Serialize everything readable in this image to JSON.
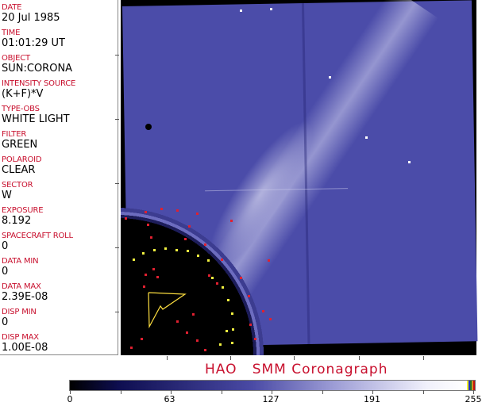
{
  "header_fields": [
    {
      "label": "DATE",
      "value": "20 Jul 1985"
    },
    {
      "label": "TIME",
      "value": "01:01:29 UT"
    },
    {
      "label": "OBJECT",
      "value": "SUN:CORONA"
    },
    {
      "label": "INTENSITY SOURCE",
      "value": "(K+F)*V"
    },
    {
      "label": "TYPE-OBS",
      "value": "WHITE LIGHT"
    },
    {
      "label": "FILTER",
      "value": "GREEN"
    },
    {
      "label": "POLAROID",
      "value": "CLEAR"
    },
    {
      "label": "SECTOR",
      "value": "W"
    },
    {
      "label": "EXPOSURE",
      "value": "8.192"
    },
    {
      "label": "SPACECRAFT ROLL",
      "value": "0"
    },
    {
      "label": "DATA MIN",
      "value": "0"
    },
    {
      "label": "DATA MAX",
      "value": "2.39E-08"
    },
    {
      "label": "DISP MIN",
      "value": "0"
    },
    {
      "label": "DISP MAX",
      "value": "1.00E-08"
    }
  ],
  "title": "HAO   SMM Coronagraph",
  "colorbar": {
    "tick_labels": [
      "0",
      "63",
      "127",
      "191",
      "255"
    ],
    "colors": {
      "low": "#000000",
      "mid": "#4a4aa5",
      "high": "#ffffff",
      "label": "#c8102e"
    }
  }
}
